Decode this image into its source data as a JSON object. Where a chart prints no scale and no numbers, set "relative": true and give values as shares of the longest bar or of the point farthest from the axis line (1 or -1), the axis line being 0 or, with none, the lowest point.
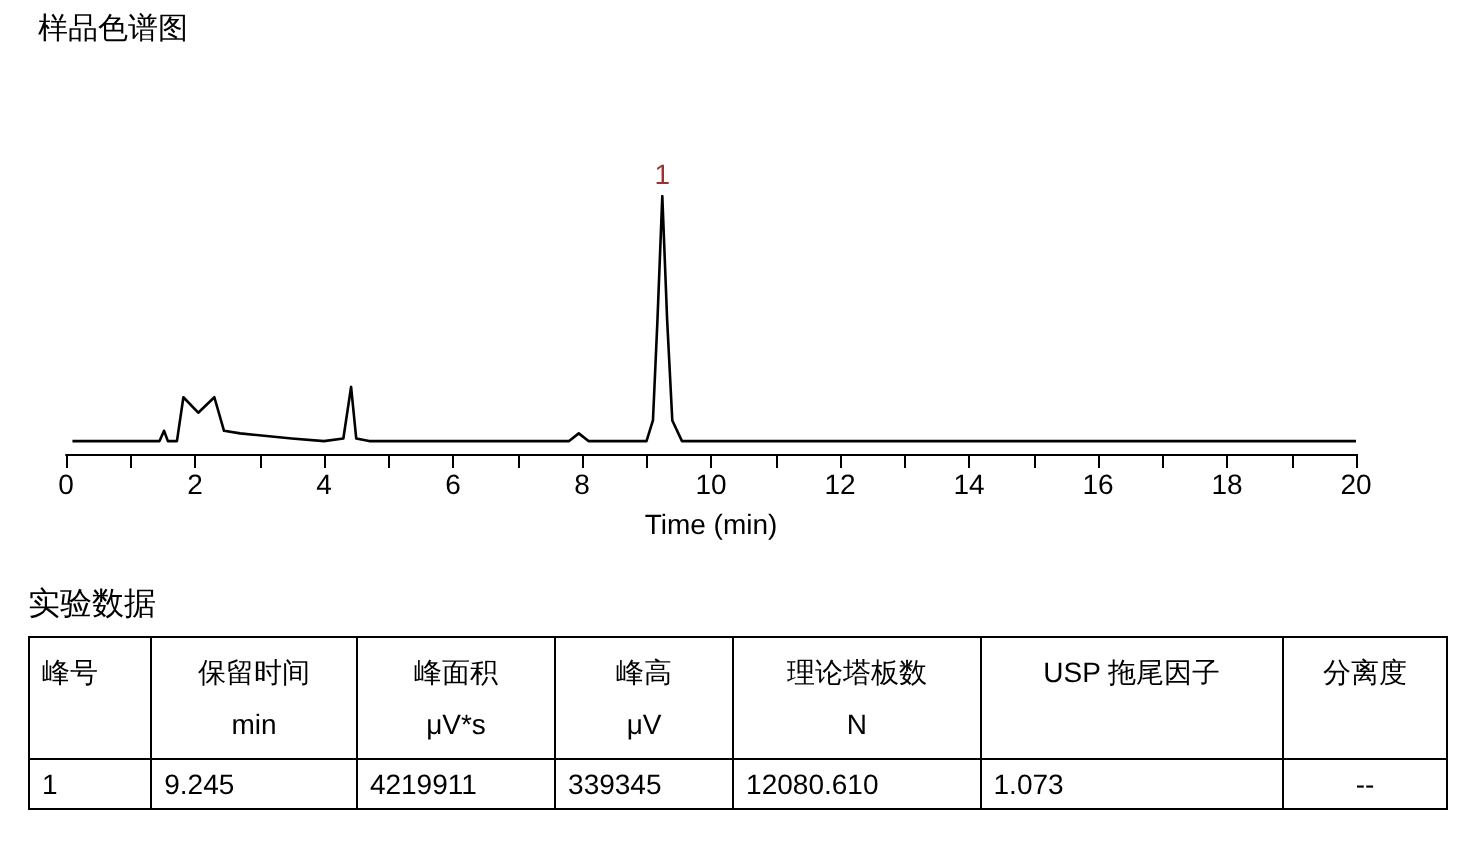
{
  "chart_data": [
    {
      "type": "line",
      "title": "样品色谱图",
      "xlabel": "Time (min)",
      "relative": true,
      "xlim": [
        0,
        20
      ],
      "xticks": [
        0,
        {
          "value": 1,
          "label": null
        },
        2,
        {
          "value": 3,
          "label": null
        },
        4,
        {
          "value": 5,
          "label": null
        },
        6,
        {
          "value": 7,
          "label": null
        },
        8,
        {
          "value": 9,
          "label": null
        },
        10,
        {
          "value": 11,
          "label": null
        },
        12,
        {
          "value": 13,
          "label": null
        },
        14,
        {
          "value": 15,
          "label": null
        },
        16,
        {
          "value": 17,
          "label": null
        },
        18,
        {
          "value": 19,
          "label": null
        },
        20
      ],
      "annotations": [
        {
          "text": "1",
          "x": 9.245,
          "y": 1
        }
      ],
      "series": [
        {
          "color": "#000000",
          "x": [
            0.1,
            1.45,
            1.52,
            1.58,
            1.72,
            1.82,
            2.05,
            2.3,
            2.45,
            2.7,
            3.5,
            4.0,
            4.3,
            4.42,
            4.5,
            4.7,
            7.8,
            7.95,
            8.1,
            9.0,
            9.1,
            9.17,
            9.245,
            9.32,
            9.4,
            9.55,
            20
          ],
          "values": [
            0.05,
            0.05,
            0.09,
            0.05,
            0.05,
            0.22,
            0.16,
            0.22,
            0.09,
            0.08,
            0.06,
            0.05,
            0.06,
            0.26,
            0.06,
            0.05,
            0.05,
            0.08,
            0.05,
            0.05,
            0.13,
            0.52,
            1,
            0.52,
            0.13,
            0.05,
            0.05
          ]
        }
      ]
    },
    {
      "type": "other",
      "title": "实验数据",
      "annotations": [
        "峰号",
        "保留时间\nmin",
        "峰面积\nμV*s",
        "峰高\nμV",
        "理论塔板数\nN",
        "USP 拖尾因子",
        "分离度",
        "1",
        "9.245",
        "4219911",
        "339345",
        "12080.610",
        "1.073",
        "--"
      ]
    }
  ]
}
